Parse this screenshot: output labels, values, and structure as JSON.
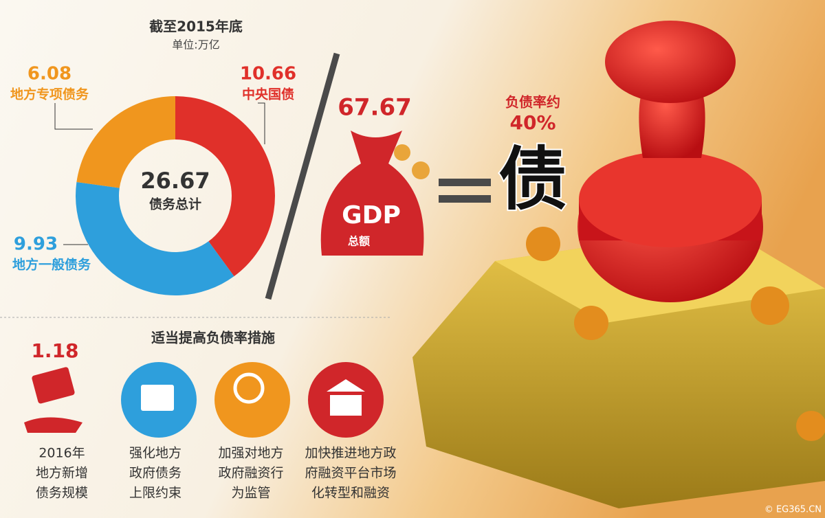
{
  "chart_data": {
    "type": "donut",
    "title": "截至2015年底",
    "subtitle": "单位:万亿",
    "categories": [
      "中央国债",
      "地方一般债务",
      "地方专项债务"
    ],
    "values": [
      10.66,
      9.93,
      6.08
    ],
    "colors": [
      "#e0302a",
      "#2e9fdc",
      "#f0961e"
    ],
    "center_value": 26.67,
    "center_label": "债务总计"
  },
  "gdp": {
    "value": 67.67,
    "label": "GDP",
    "sublabel": "总额"
  },
  "ratio": {
    "label": "负债率约",
    "value": "40%"
  },
  "stamp_char": "债",
  "measures": {
    "title": "适当提高负债率措施",
    "value": 1.18,
    "items": [
      [
        "2016年",
        "地方新增",
        "债务规模"
      ],
      [
        "强化地方",
        "政府债务",
        "上限约束"
      ],
      [
        "加强对地方",
        "政府融资行",
        "为监管"
      ],
      [
        "加快推进地方政",
        "府融资平台市场",
        "化转型和融资"
      ]
    ]
  },
  "watermark": "© EG365.CN"
}
